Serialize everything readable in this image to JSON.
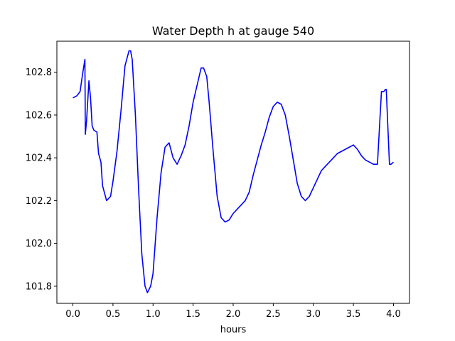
{
  "chart_data": {
    "type": "line",
    "title": "Water Depth h at gauge 540",
    "xlabel": "hours",
    "ylabel": "",
    "xlim": [
      -0.2,
      4.2
    ],
    "ylim": [
      101.72,
      102.945
    ],
    "grid": false,
    "legend": "none",
    "xticks": [
      0.0,
      0.5,
      1.0,
      1.5,
      2.0,
      2.5,
      3.0,
      3.5,
      4.0
    ],
    "xtick_labels": [
      "0.0",
      "0.5",
      "1.0",
      "1.5",
      "2.0",
      "2.5",
      "3.0",
      "3.5",
      "4.0"
    ],
    "yticks": [
      101.8,
      102.0,
      102.2,
      102.4,
      102.6,
      102.8
    ],
    "ytick_labels": [
      "101.8",
      "102.0",
      "102.2",
      "102.4",
      "102.6",
      "102.8"
    ],
    "series": [
      {
        "color": "#0000ff",
        "x": [
          0.0,
          0.05,
          0.09,
          0.12,
          0.15,
          0.155,
          0.17,
          0.2,
          0.22,
          0.24,
          0.26,
          0.3,
          0.32,
          0.35,
          0.37,
          0.42,
          0.47,
          0.5,
          0.55,
          0.6,
          0.65,
          0.7,
          0.72,
          0.74,
          0.78,
          0.82,
          0.86,
          0.9,
          0.93,
          0.97,
          1.0,
          1.05,
          1.1,
          1.15,
          1.2,
          1.25,
          1.3,
          1.35,
          1.38,
          1.4,
          1.45,
          1.5,
          1.55,
          1.6,
          1.63,
          1.67,
          1.7,
          1.75,
          1.8,
          1.85,
          1.9,
          1.95,
          2.0,
          2.05,
          2.1,
          2.15,
          2.2,
          2.25,
          2.3,
          2.35,
          2.4,
          2.45,
          2.5,
          2.55,
          2.6,
          2.65,
          2.7,
          2.75,
          2.8,
          2.85,
          2.9,
          2.95,
          3.0,
          3.05,
          3.1,
          3.15,
          3.2,
          3.25,
          3.3,
          3.35,
          3.4,
          3.45,
          3.5,
          3.55,
          3.6,
          3.65,
          3.7,
          3.75,
          3.8,
          3.85,
          3.88,
          3.9,
          3.905,
          3.91,
          3.95,
          3.96,
          3.97,
          4.0
        ],
        "values": [
          102.68,
          102.69,
          102.71,
          102.79,
          102.86,
          102.51,
          102.57,
          102.76,
          102.68,
          102.55,
          102.53,
          102.52,
          102.42,
          102.38,
          102.27,
          102.2,
          102.22,
          102.29,
          102.43,
          102.62,
          102.83,
          102.9,
          102.9,
          102.86,
          102.6,
          102.25,
          101.95,
          101.8,
          101.77,
          101.8,
          101.86,
          102.12,
          102.33,
          102.45,
          102.47,
          102.4,
          102.37,
          102.41,
          102.44,
          102.46,
          102.55,
          102.66,
          102.74,
          102.82,
          102.82,
          102.78,
          102.66,
          102.43,
          102.22,
          102.12,
          102.1,
          102.11,
          102.14,
          102.16,
          102.18,
          102.2,
          102.24,
          102.32,
          102.39,
          102.46,
          102.52,
          102.59,
          102.64,
          102.66,
          102.65,
          102.6,
          102.5,
          102.39,
          102.28,
          102.22,
          102.2,
          102.22,
          102.26,
          102.3,
          102.34,
          102.36,
          102.38,
          102.4,
          102.42,
          102.43,
          102.44,
          102.45,
          102.46,
          102.44,
          102.41,
          102.39,
          102.38,
          102.37,
          102.37,
          102.71,
          102.71,
          102.72,
          102.72,
          102.72,
          102.37,
          102.37,
          102.37,
          102.38
        ]
      }
    ]
  }
}
